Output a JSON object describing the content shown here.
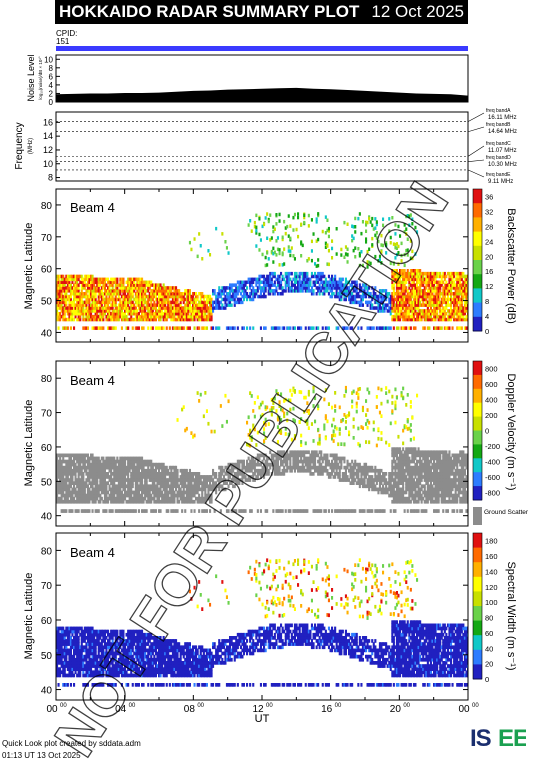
{
  "header": {
    "title": "HOKKAIDO RADAR SUMMARY PLOT",
    "date": "12 Oct 2025"
  },
  "cpid": {
    "label": "CPID:",
    "value": "151"
  },
  "watermark": "NOT FOR PUBLICATION",
  "footer": {
    "line1": "Quick Look plot created by sddata.adm",
    "line2": "01:13 UT 13 Oct 2025"
  },
  "logo": {
    "text": "ISEE"
  },
  "colors": {
    "cpid_bar": "#3a3aff",
    "ground_scatter": "#8c8c8c"
  },
  "chart_data": [
    {
      "type": "area",
      "ylabel": "Noise Level",
      "ylabel_sub": "log₁₀(noise)/dB × 10¹°",
      "yticks": [
        0,
        2,
        4,
        6,
        8,
        10
      ],
      "ylim": [
        0,
        11
      ],
      "x": [
        0,
        1,
        2,
        3,
        4,
        5,
        6,
        7,
        8,
        9,
        10,
        11,
        12,
        13,
        14,
        15,
        16,
        17,
        18,
        19,
        20,
        21,
        22,
        23,
        24
      ],
      "values": [
        1.8,
        1.9,
        2.0,
        2.0,
        2.1,
        2.1,
        2.2,
        2.4,
        2.6,
        2.7,
        2.9,
        3.0,
        3.1,
        3.2,
        3.3,
        3.1,
        3.0,
        2.8,
        2.6,
        2.4,
        2.2,
        2.0,
        1.9,
        1.8,
        1.5
      ]
    },
    {
      "type": "line",
      "ylabel": "Frequency",
      "ylabel_unit": "(MHz)",
      "yticks": [
        8,
        10,
        12,
        14,
        16
      ],
      "ylim": [
        7.5,
        17.5
      ],
      "bands": [
        {
          "label": "freq bandA",
          "value": "16.11 MHz",
          "mhz": 16.11
        },
        {
          "label": "freq bandB",
          "value": "14.64 MHz",
          "mhz": 14.64
        },
        {
          "label": "freq bandC",
          "value": "11.07 MHz",
          "mhz": 11.07
        },
        {
          "label": "freq bandD",
          "value": "10.30 MHz",
          "mhz": 10.3
        },
        {
          "label": "freq bandE",
          "value": "9.11 MHz",
          "mhz": 9.11
        }
      ]
    },
    {
      "type": "heatmap",
      "panel_label": "Beam  4",
      "ylabel": "Magnetic Latitude",
      "yticks": [
        40,
        50,
        60,
        70,
        80
      ],
      "ylim": [
        37,
        85
      ],
      "colorbar_label": "Backscatter Power (dB)",
      "colorbar_ticks": [
        0,
        4,
        8,
        12,
        16,
        20,
        24,
        28,
        32,
        36
      ],
      "colorbar_range": [
        0,
        38
      ],
      "colorscale": [
        "#2020c0",
        "#2d7cff",
        "#10c8c8",
        "#14a814",
        "#6ad24a",
        "#c8e000",
        "#ffff00",
        "#ffb000",
        "#ff6a00",
        "#e01010"
      ]
    },
    {
      "type": "heatmap",
      "panel_label": "Beam  4",
      "ylabel": "Magnetic Latitude",
      "yticks": [
        40,
        50,
        60,
        70,
        80
      ],
      "ylim": [
        37,
        85
      ],
      "colorbar_label": "Doppler Velocity (m s⁻¹)",
      "colorbar_ticks": [
        800,
        600,
        400,
        200,
        0,
        -200,
        -400,
        -600,
        -800
      ],
      "colorbar_range": [
        -900,
        900
      ],
      "ground_scatter_label": "Ground Scatter",
      "colorscale": [
        "#e01010",
        "#ff6a00",
        "#ffb000",
        "#ffff00",
        "#c8e000",
        "#6ad24a",
        "#14a814",
        "#10c8c8",
        "#2d7cff",
        "#2020c0"
      ]
    },
    {
      "type": "heatmap",
      "panel_label": "Beam  4",
      "ylabel": "Magnetic Latitude",
      "yticks": [
        40,
        50,
        60,
        70,
        80
      ],
      "ylim": [
        37,
        85
      ],
      "colorbar_label": "Spectral Width (m s⁻¹)",
      "colorbar_ticks": [
        0,
        20,
        40,
        60,
        80,
        100,
        120,
        140,
        160,
        180
      ],
      "colorbar_range": [
        0,
        190
      ],
      "xlabel": "UT",
      "xticks": [
        "00",
        "04",
        "08",
        "12",
        "16",
        "20",
        "00"
      ],
      "xtick_sup": "00",
      "colorscale": [
        "#2020c0",
        "#2d7cff",
        "#10c8c8",
        "#14a814",
        "#6ad24a",
        "#c8e000",
        "#ffff00",
        "#ffb000",
        "#ff6a00",
        "#e01010"
      ]
    }
  ]
}
